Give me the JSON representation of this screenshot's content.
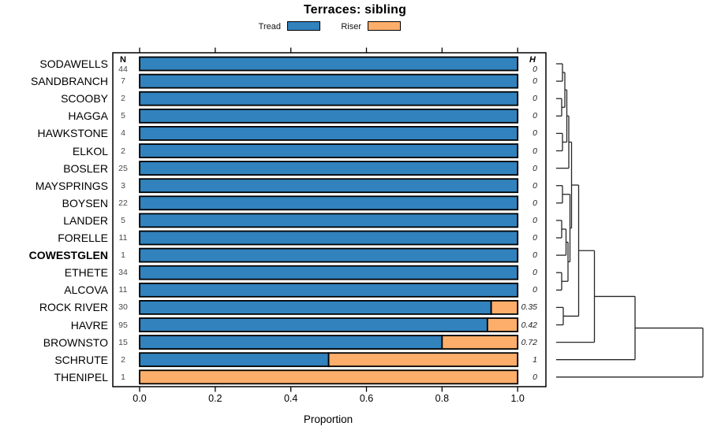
{
  "title": "Terraces: sibling",
  "legend": {
    "items": [
      {
        "label": "Tread",
        "color": "#3182bd"
      },
      {
        "label": "Riser",
        "color": "#fdae6b"
      }
    ]
  },
  "columns": {
    "n_header": "N",
    "h_header": "H"
  },
  "axis": {
    "label": "Proportion",
    "ticks": [
      "0.0",
      "0.2",
      "0.4",
      "0.6",
      "0.8",
      "1.0"
    ],
    "tick_values": [
      0,
      0.2,
      0.4,
      0.6,
      0.8,
      1.0
    ],
    "xlim": [
      0,
      1
    ]
  },
  "chart_data": {
    "type": "bar",
    "orientation": "horizontal-stacked",
    "title": "Terraces: sibling",
    "xlabel": "Proportion",
    "xlim": [
      0,
      1
    ],
    "series_names": [
      "Tread",
      "Riser"
    ],
    "colors": {
      "tread": "#3182bd",
      "riser": "#fdae6b"
    },
    "rows": [
      {
        "site": "SODAWELLS",
        "n": 44,
        "h": "0",
        "tread": 1.0,
        "riser": 0.0,
        "bold": false
      },
      {
        "site": "SANDBRANCH",
        "n": 7,
        "h": "0",
        "tread": 1.0,
        "riser": 0.0,
        "bold": false
      },
      {
        "site": "SCOOBY",
        "n": 2,
        "h": "0",
        "tread": 1.0,
        "riser": 0.0,
        "bold": false
      },
      {
        "site": "HAGGA",
        "n": 5,
        "h": "0",
        "tread": 1.0,
        "riser": 0.0,
        "bold": false
      },
      {
        "site": "HAWKSTONE",
        "n": 4,
        "h": "0",
        "tread": 1.0,
        "riser": 0.0,
        "bold": false
      },
      {
        "site": "ELKOL",
        "n": 2,
        "h": "0",
        "tread": 1.0,
        "riser": 0.0,
        "bold": false
      },
      {
        "site": "BOSLER",
        "n": 25,
        "h": "0",
        "tread": 1.0,
        "riser": 0.0,
        "bold": false
      },
      {
        "site": "MAYSPRINGS",
        "n": 3,
        "h": "0",
        "tread": 1.0,
        "riser": 0.0,
        "bold": false
      },
      {
        "site": "BOYSEN",
        "n": 22,
        "h": "0",
        "tread": 1.0,
        "riser": 0.0,
        "bold": false
      },
      {
        "site": "LANDER",
        "n": 5,
        "h": "0",
        "tread": 1.0,
        "riser": 0.0,
        "bold": false
      },
      {
        "site": "FORELLE",
        "n": 11,
        "h": "0",
        "tread": 1.0,
        "riser": 0.0,
        "bold": false
      },
      {
        "site": "COWESTGLEN",
        "n": 1,
        "h": "0",
        "tread": 1.0,
        "riser": 0.0,
        "bold": true
      },
      {
        "site": "ETHETE",
        "n": 34,
        "h": "0",
        "tread": 1.0,
        "riser": 0.0,
        "bold": false
      },
      {
        "site": "ALCOVA",
        "n": 11,
        "h": "0",
        "tread": 1.0,
        "riser": 0.0,
        "bold": false
      },
      {
        "site": "ROCK RIVER",
        "n": 30,
        "h": "0.35",
        "tread": 0.93,
        "riser": 0.07,
        "bold": false
      },
      {
        "site": "HAVRE",
        "n": 95,
        "h": "0.42",
        "tread": 0.92,
        "riser": 0.08,
        "bold": false
      },
      {
        "site": "BROWNSTO",
        "n": 15,
        "h": "0.72",
        "tread": 0.8,
        "riser": 0.2,
        "bold": false
      },
      {
        "site": "SCHRUTE",
        "n": 2,
        "h": "1",
        "tread": 0.5,
        "riser": 0.5,
        "bold": false
      },
      {
        "site": "THENIPEL",
        "n": 1,
        "h": "0",
        "tread": 0.0,
        "riser": 1.0,
        "bold": false
      }
    ]
  },
  "dendrogram": {
    "leaves": [
      "L1",
      "L2",
      "L3",
      "L4",
      "L5",
      "L6",
      "L7",
      "L8",
      "L9",
      "L10",
      "L11",
      "L12",
      "L13",
      "L14",
      "L15",
      "L16",
      "L17",
      "L18",
      "L19"
    ],
    "merges": [
      {
        "id": "T1",
        "x": 713,
        "a": "L1",
        "b": "L2"
      },
      {
        "id": "T2",
        "x": 712,
        "a": "L3",
        "b": "L4"
      },
      {
        "id": "T3",
        "x": 716,
        "a": "T1",
        "b": "T2"
      },
      {
        "id": "T4",
        "x": 713,
        "a": "L5",
        "b": "L6"
      },
      {
        "id": "T5",
        "x": 718.5,
        "a": "T3",
        "b": "T4"
      },
      {
        "id": "T6",
        "x": 721,
        "a": "T5",
        "b": "L7"
      },
      {
        "id": "T7",
        "x": 713,
        "a": "L8",
        "b": "L9"
      },
      {
        "id": "T8",
        "x": 712,
        "a": "L10",
        "b": "L11"
      },
      {
        "id": "T9",
        "x": 717.5,
        "a": "T8",
        "b": "L12"
      },
      {
        "id": "T10",
        "x": 712,
        "a": "L13",
        "b": "L14"
      },
      {
        "id": "T11",
        "x": 720,
        "a": "T9",
        "b": "T10"
      },
      {
        "id": "T12",
        "x": 722.5,
        "a": "T7",
        "b": "T11"
      },
      {
        "id": "T13",
        "x": 724.5,
        "a": "T6",
        "b": "T12"
      },
      {
        "id": "T14",
        "x": 714,
        "a": "L15",
        "b": "L16"
      },
      {
        "id": "T15",
        "x": 733.5,
        "a": "T13",
        "b": "T14"
      },
      {
        "id": "T16",
        "x": 753.5,
        "a": "T15",
        "b": "L17"
      },
      {
        "id": "T17",
        "x": 805,
        "a": "T16",
        "b": "L18"
      },
      {
        "id": "T18",
        "x": 891,
        "a": "T17",
        "b": "L19"
      }
    ]
  }
}
